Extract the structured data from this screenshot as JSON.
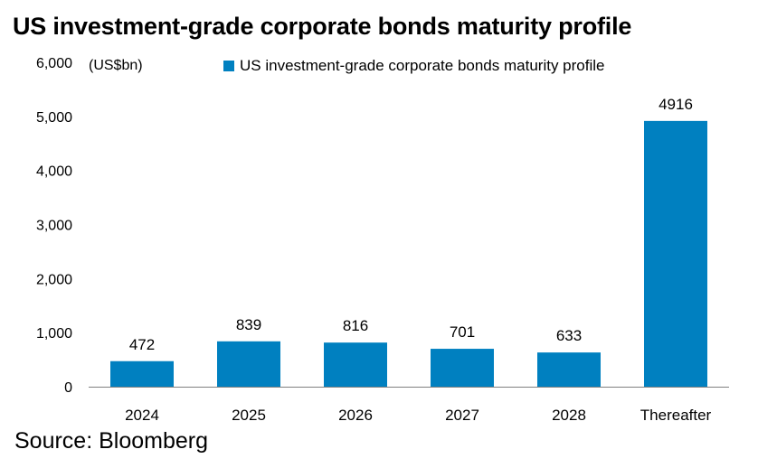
{
  "title": "US investment-grade corporate bonds maturity profile",
  "source": "Source: Bloomberg",
  "colors": {
    "bar": "#0080C0",
    "axis": "#7f7f7f",
    "text": "#000000"
  },
  "chart_data": {
    "type": "bar",
    "title": "US investment-grade corporate bonds maturity profile",
    "unit_label": "(US$bn)",
    "categories": [
      "2024",
      "2025",
      "2026",
      "2027",
      "2028",
      "Thereafter"
    ],
    "series": [
      {
        "name": "US investment-grade corporate bonds maturity profile",
        "values": [
          472,
          839,
          816,
          701,
          633,
          4916
        ],
        "data_labels": [
          "472",
          "839",
          "816",
          "701",
          "633",
          "4916"
        ]
      }
    ],
    "yticks": [
      0,
      1000,
      2000,
      3000,
      4000,
      5000,
      6000
    ],
    "ytick_labels": [
      "0",
      "1,000",
      "2,000",
      "3,000",
      "4,000",
      "5,000",
      "6,000"
    ],
    "ylim": [
      0,
      6000
    ],
    "grid": false,
    "legend_position": "top"
  }
}
